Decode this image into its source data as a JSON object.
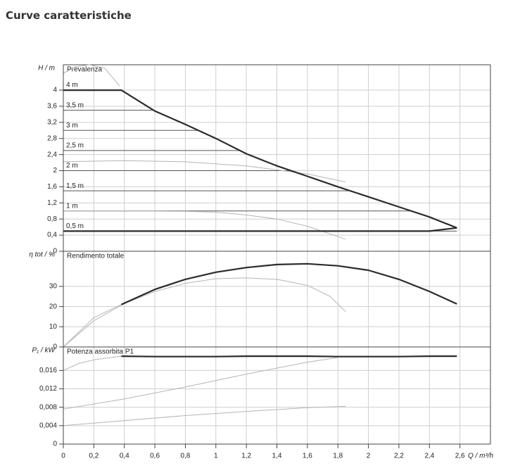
{
  "page_title": "Curve caratteristiche",
  "chart_data": [
    {
      "type": "line",
      "title": "Prevalenza",
      "ylabel": "H / m",
      "ylim": [
        0,
        4.63
      ],
      "yticks": [
        0,
        {
          "value": 0.4,
          "label": "0,4"
        },
        {
          "value": 0.8,
          "label": "0,8"
        },
        {
          "value": 1.2,
          "label": "1,2"
        },
        {
          "value": 1.6,
          "label": "1,6"
        },
        2,
        {
          "value": 2.4,
          "label": "2,4"
        },
        {
          "value": 2.8,
          "label": "2,8"
        },
        {
          "value": 3.2,
          "label": "3,2"
        },
        {
          "value": 3.6,
          "label": "3,6"
        },
        4
      ],
      "grid": true,
      "levels": [
        {
          "label": "4 m",
          "value": 4
        },
        {
          "label": "3,5 m",
          "value": 3.5
        },
        {
          "label": "3 m",
          "value": 3
        },
        {
          "label": "2,5 m",
          "value": 2.5
        },
        {
          "label": "2 m",
          "value": 2
        },
        {
          "label": "1,5 m",
          "value": 1.5
        },
        {
          "label": "1 m",
          "value": 1
        },
        {
          "label": "0,5 m",
          "value": 0.5
        }
      ],
      "series": [
        {
          "color": "#2b2b2b",
          "x": [
            0,
            0.38,
            0.6,
            0.8,
            1.0,
            1.2,
            1.4,
            1.6,
            1.8,
            2.0,
            2.2,
            2.4,
            2.58
          ],
          "values": [
            4,
            4,
            3.48,
            3.15,
            2.8,
            2.42,
            2.12,
            1.86,
            1.6,
            1.35,
            1.1,
            0.85,
            0.58
          ]
        },
        {
          "color": "#2b2b2b",
          "x": [
            0,
            2.4,
            2.58
          ],
          "values": [
            0.5,
            0.5,
            0.58
          ]
        },
        {
          "color": "#b5b5b5",
          "x": [
            0,
            0.08,
            0.17,
            0.27,
            0.37
          ],
          "values": [
            4.42,
            4.58,
            4.63,
            4.55,
            4.1
          ]
        },
        {
          "color": "#b5b5b5",
          "x": [
            0,
            0.4,
            0.8,
            1.2,
            1.6,
            1.85
          ],
          "values": [
            2.22,
            2.25,
            2.22,
            2.12,
            1.92,
            1.72
          ]
        },
        {
          "color": "#b5b5b5",
          "x": [
            0,
            0.4,
            0.8,
            1.0,
            1.2,
            1.4,
            1.6,
            1.85
          ],
          "values": [
            1.0,
            1.0,
            0.99,
            0.97,
            0.9,
            0.8,
            0.62,
            0.3
          ]
        }
      ]
    },
    {
      "type": "line",
      "title": "Rendimento totale",
      "ylabel": "η tot / %",
      "ylim": [
        0,
        47.4
      ],
      "yticks": [
        0,
        10,
        20,
        30
      ],
      "grid": true,
      "series": [
        {
          "color": "#2b2b2b",
          "x": [
            0.38,
            0.6,
            0.8,
            1.0,
            1.2,
            1.4,
            1.6,
            1.8,
            2.0,
            2.2,
            2.4,
            2.58
          ],
          "values": [
            21,
            28.5,
            33.5,
            37,
            39.3,
            40.8,
            41.2,
            40.2,
            38,
            33.5,
            27.5,
            21.3
          ]
        },
        {
          "color": "#b5b5b5",
          "x": [
            0,
            0.2,
            0.4,
            0.6,
            0.8,
            1.0,
            1.2,
            1.4,
            1.6,
            1.75,
            1.85
          ],
          "values": [
            0,
            13,
            21.5,
            27.5,
            31.5,
            33.8,
            34.2,
            33.5,
            30.5,
            25,
            17.5
          ]
        },
        {
          "color": "#b5b5b5",
          "x": [
            0,
            0.2,
            0.38
          ],
          "values": [
            0,
            14.5,
            21
          ]
        }
      ]
    },
    {
      "type": "line",
      "title": "Potenza assorbita P1",
      "ylabel": "P₁ / kW",
      "ylim": [
        0,
        0.0211
      ],
      "yticks": [
        0,
        {
          "value": 0.004,
          "label": "0,004"
        },
        {
          "value": 0.008,
          "label": "0,008"
        },
        {
          "value": 0.012,
          "label": "0,012"
        },
        {
          "value": 0.016,
          "label": "0,016"
        }
      ],
      "grid": true,
      "xlabel": "Q / m³/h",
      "xlim": [
        0,
        2.8
      ],
      "xticks": [
        0,
        {
          "value": 0.2,
          "label": "0,2"
        },
        {
          "value": 0.4,
          "label": "0,4"
        },
        {
          "value": 0.6,
          "label": "0,6"
        },
        {
          "value": 0.8,
          "label": "0,8"
        },
        1,
        {
          "value": 1.2,
          "label": "1,2"
        },
        {
          "value": 1.4,
          "label": "1,4"
        },
        {
          "value": 1.6,
          "label": "1,6"
        },
        {
          "value": 1.8,
          "label": "1,8"
        },
        2,
        {
          "value": 2.2,
          "label": "2,2"
        },
        {
          "value": 2.4,
          "label": "2,4"
        },
        {
          "value": 2.6,
          "label": "2,6"
        }
      ],
      "series": [
        {
          "color": "#2b2b2b",
          "x": [
            0.38,
            0.6,
            0.8,
            1.0,
            1.2,
            1.4,
            1.6,
            1.8,
            2.0,
            2.2,
            2.4,
            2.58
          ],
          "values": [
            0.0191,
            0.019,
            0.019,
            0.019,
            0.0191,
            0.0191,
            0.0191,
            0.019,
            0.019,
            0.019,
            0.0191,
            0.0191
          ]
        },
        {
          "color": "#b5b5b5",
          "x": [
            0,
            0.1,
            0.2,
            0.38
          ],
          "values": [
            0.016,
            0.0175,
            0.0183,
            0.0191
          ]
        },
        {
          "color": "#b5b5b5",
          "x": [
            0,
            0.4,
            0.8,
            1.2,
            1.6,
            1.8
          ],
          "values": [
            0.0076,
            0.0098,
            0.0124,
            0.0152,
            0.0178,
            0.0188
          ]
        },
        {
          "color": "#b5b5b5",
          "x": [
            0,
            0.4,
            0.8,
            1.2,
            1.6,
            1.85
          ],
          "values": [
            0.004,
            0.0051,
            0.0062,
            0.0071,
            0.0079,
            0.0082
          ]
        }
      ]
    }
  ]
}
